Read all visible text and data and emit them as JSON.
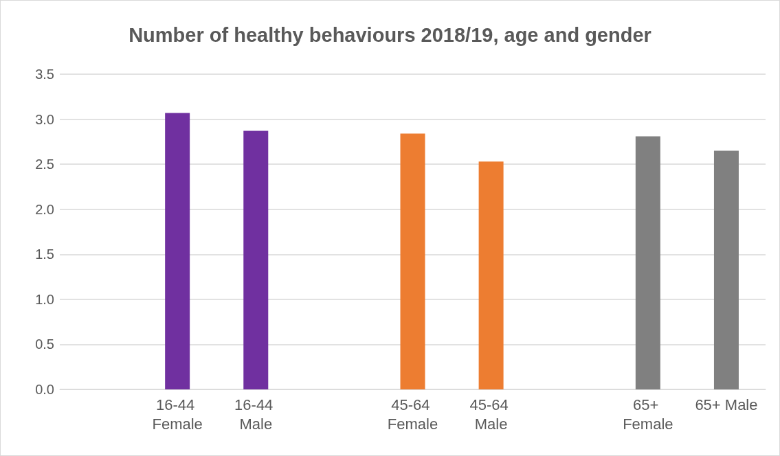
{
  "chart_data": {
    "type": "bar",
    "title": "Number of healthy behaviours 2018/19, age and gender",
    "categories": [
      null,
      "16-44 Female",
      "16-44 Male",
      null,
      "45-64 Female",
      "45-64 Male",
      null,
      "65+ Female",
      "65+ Male"
    ],
    "values": [
      null,
      3.07,
      2.87,
      null,
      2.84,
      2.53,
      null,
      2.81,
      2.65
    ],
    "colors": [
      "#7030a0",
      "#7030a0",
      "#7030a0",
      "#ed7d31",
      "#ed7d31",
      "#ed7d31",
      "#808080",
      "#808080",
      "#808080"
    ],
    "ylim": [
      0,
      3.5
    ],
    "yticks": [
      {
        "value": 0,
        "label": "0.0"
      },
      0.5,
      {
        "value": 1,
        "label": "1.0"
      },
      1.5,
      {
        "value": 2,
        "label": "2.0"
      },
      2.5,
      {
        "value": 3,
        "label": "3.0"
      },
      3.5
    ],
    "grid": "y"
  }
}
